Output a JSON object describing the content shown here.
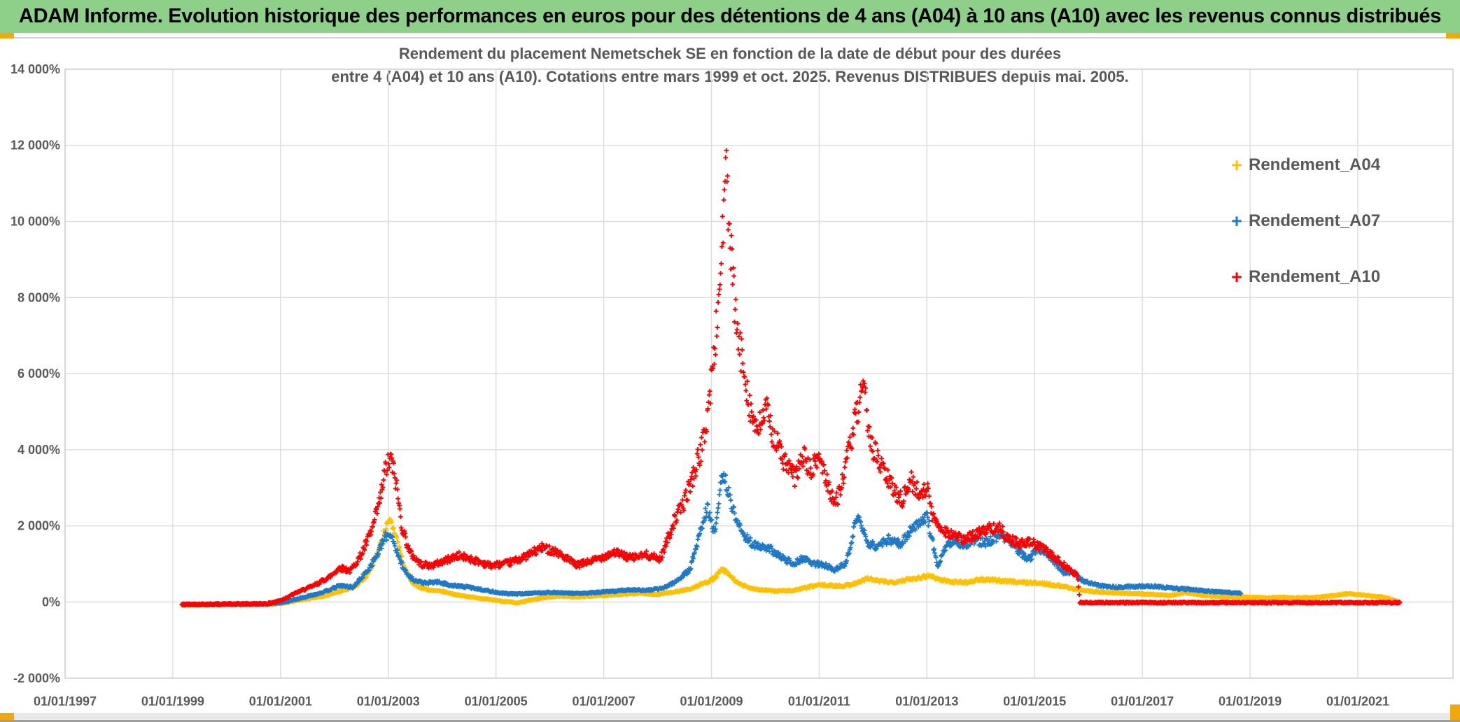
{
  "header": {
    "title": "ADAM Informe. Evolution historique des performances en euros pour des détentions de 4 ans (A04) à 10 ans (A10) avec les revenus connus distribués",
    "bg_color": "#8ECF8A",
    "accent_color": "#F0A80C"
  },
  "chart_data": {
    "type": "scatter",
    "marker": "plus",
    "title_lines": [
      "Rendement du placement Nemetschek SE en fonction de la date de début pour des durées",
      "entre 4 (A04) et 10 ans (A10). Cotations entre mars 1999 et oct. 2025. Revenus DISTRIBUES depuis mai. 2005."
    ],
    "grid": true,
    "grid_color": "#dcdcdc",
    "border_color": "#cfcfcf",
    "axis_text_color": "#595959",
    "x_axis": {
      "tick_years": [
        1997,
        1999,
        2001,
        2003,
        2005,
        2007,
        2009,
        2011,
        2013,
        2015,
        2017,
        2019,
        2021
      ],
      "tick_labels": [
        "01/01/1997",
        "01/01/1999",
        "01/01/2001",
        "01/01/2003",
        "01/01/2005",
        "01/01/2007",
        "01/01/2009",
        "01/01/2011",
        "01/01/2013",
        "01/01/2015",
        "01/01/2017",
        "01/01/2019",
        "01/01/2021"
      ]
    },
    "y_axis": {
      "min": -2000,
      "max": 14000,
      "tick_values": [
        14000,
        12000,
        10000,
        8000,
        6000,
        4000,
        2000,
        0,
        -2000
      ],
      "tick_labels": [
        "14 000%",
        "12 000%",
        "10 000%",
        "8 000%",
        "6 000%",
        "4 000%",
        "2 000%",
        "0%",
        "-2 000%"
      ]
    },
    "legend": {
      "position": "right",
      "entries": [
        {
          "label": "Rendement_A04",
          "color": "#FFC000"
        },
        {
          "label": "Rendement_A07",
          "color": "#1E7AC8"
        },
        {
          "label": "Rendement_A10",
          "color": "#FE0000"
        }
      ]
    },
    "series": [
      {
        "name": "Rendement_A04",
        "color": "#FFC000",
        "seed": 7,
        "points_per_year": 85,
        "noise_frac": 0.07,
        "noise_min": 14,
        "keypoints": [
          [
            1999.17,
            -80
          ],
          [
            1999.6,
            -75
          ],
          [
            2000.2,
            -70
          ],
          [
            2000.75,
            -60
          ],
          [
            2001.0,
            -40
          ],
          [
            2001.4,
            60
          ],
          [
            2001.8,
            150
          ],
          [
            2002.1,
            280
          ],
          [
            2002.4,
            420
          ],
          [
            2002.6,
            700
          ],
          [
            2002.8,
            1250
          ],
          [
            2002.95,
            1950
          ],
          [
            2003.05,
            2100
          ],
          [
            2003.15,
            1700
          ],
          [
            2003.3,
            900
          ],
          [
            2003.45,
            500
          ],
          [
            2003.6,
            380
          ],
          [
            2003.8,
            300
          ],
          [
            2004.0,
            280
          ],
          [
            2004.3,
            180
          ],
          [
            2004.6,
            120
          ],
          [
            2004.9,
            60
          ],
          [
            2005.2,
            10
          ],
          [
            2005.4,
            -30
          ],
          [
            2005.6,
            40
          ],
          [
            2005.9,
            120
          ],
          [
            2006.2,
            160
          ],
          [
            2006.5,
            130
          ],
          [
            2006.8,
            160
          ],
          [
            2007.1,
            180
          ],
          [
            2007.4,
            210
          ],
          [
            2007.7,
            230
          ],
          [
            2008.0,
            200
          ],
          [
            2008.3,
            260
          ],
          [
            2008.6,
            340
          ],
          [
            2008.9,
            520
          ],
          [
            2009.05,
            620
          ],
          [
            2009.2,
            860
          ],
          [
            2009.35,
            690
          ],
          [
            2009.5,
            480
          ],
          [
            2009.7,
            380
          ],
          [
            2009.9,
            320
          ],
          [
            2010.2,
            290
          ],
          [
            2010.5,
            300
          ],
          [
            2010.8,
            390
          ],
          [
            2011.0,
            450
          ],
          [
            2011.2,
            430
          ],
          [
            2011.45,
            420
          ],
          [
            2011.7,
            500
          ],
          [
            2011.9,
            620
          ],
          [
            2012.1,
            550
          ],
          [
            2012.35,
            520
          ],
          [
            2012.6,
            580
          ],
          [
            2012.85,
            640
          ],
          [
            2013.05,
            700
          ],
          [
            2013.25,
            580
          ],
          [
            2013.5,
            530
          ],
          [
            2013.75,
            520
          ],
          [
            2014.0,
            590
          ],
          [
            2014.25,
            570
          ],
          [
            2014.5,
            550
          ],
          [
            2014.75,
            520
          ],
          [
            2015.0,
            500
          ],
          [
            2015.25,
            470
          ],
          [
            2015.5,
            420
          ],
          [
            2015.75,
            340
          ],
          [
            2016.0,
            290
          ],
          [
            2016.3,
            250
          ],
          [
            2016.6,
            230
          ],
          [
            2016.9,
            220
          ],
          [
            2017.2,
            200
          ],
          [
            2017.5,
            170
          ],
          [
            2017.8,
            250
          ],
          [
            2018.1,
            180
          ],
          [
            2018.4,
            150
          ],
          [
            2018.7,
            130
          ],
          [
            2019.0,
            120
          ],
          [
            2019.3,
            110
          ],
          [
            2019.6,
            120
          ],
          [
            2019.9,
            110
          ],
          [
            2020.2,
            120
          ],
          [
            2020.5,
            160
          ],
          [
            2020.8,
            220
          ],
          [
            2021.0,
            200
          ],
          [
            2021.2,
            170
          ],
          [
            2021.45,
            130
          ],
          [
            2021.6,
            80
          ],
          [
            2021.79,
            0
          ]
        ]
      },
      {
        "name": "Rendement_A07",
        "color": "#1E7AC8",
        "seed": 13,
        "points_per_year": 85,
        "noise_frac": 0.07,
        "noise_min": 16,
        "keypoints": [
          [
            1999.17,
            -70
          ],
          [
            1999.6,
            -65
          ],
          [
            2000.2,
            -60
          ],
          [
            2000.75,
            -50
          ],
          [
            2001.05,
            -10
          ],
          [
            2001.4,
            110
          ],
          [
            2001.8,
            260
          ],
          [
            2002.1,
            430
          ],
          [
            2002.35,
            390
          ],
          [
            2002.6,
            800
          ],
          [
            2002.8,
            1250
          ],
          [
            2002.95,
            1720
          ],
          [
            2003.05,
            1800
          ],
          [
            2003.2,
            1150
          ],
          [
            2003.35,
            720
          ],
          [
            2003.5,
            560
          ],
          [
            2003.7,
            490
          ],
          [
            2003.9,
            530
          ],
          [
            2004.2,
            430
          ],
          [
            2004.5,
            390
          ],
          [
            2004.8,
            310
          ],
          [
            2005.1,
            230
          ],
          [
            2005.4,
            210
          ],
          [
            2005.7,
            235
          ],
          [
            2006.0,
            255
          ],
          [
            2006.3,
            235
          ],
          [
            2006.6,
            225
          ],
          [
            2006.9,
            255
          ],
          [
            2007.2,
            285
          ],
          [
            2007.5,
            325
          ],
          [
            2007.8,
            305
          ],
          [
            2008.1,
            360
          ],
          [
            2008.35,
            550
          ],
          [
            2008.6,
            850
          ],
          [
            2008.92,
            2500
          ],
          [
            2009.05,
            1800
          ],
          [
            2009.18,
            3100
          ],
          [
            2009.25,
            3300
          ],
          [
            2009.35,
            2650
          ],
          [
            2009.55,
            1850
          ],
          [
            2009.8,
            1480
          ],
          [
            2010.1,
            1380
          ],
          [
            2010.35,
            1120
          ],
          [
            2010.55,
            1020
          ],
          [
            2010.7,
            1160
          ],
          [
            2010.9,
            1010
          ],
          [
            2011.1,
            960
          ],
          [
            2011.3,
            860
          ],
          [
            2011.5,
            1010
          ],
          [
            2011.65,
            1950
          ],
          [
            2011.75,
            2200
          ],
          [
            2011.9,
            1520
          ],
          [
            2012.1,
            1460
          ],
          [
            2012.3,
            1660
          ],
          [
            2012.5,
            1520
          ],
          [
            2012.7,
            1900
          ],
          [
            2012.85,
            2080
          ],
          [
            2013.0,
            2280
          ],
          [
            2013.1,
            1620
          ],
          [
            2013.2,
            960
          ],
          [
            2013.35,
            1420
          ],
          [
            2013.5,
            1620
          ],
          [
            2013.7,
            1500
          ],
          [
            2013.9,
            1610
          ],
          [
            2014.1,
            1560
          ],
          [
            2014.35,
            1740
          ],
          [
            2014.55,
            1610
          ],
          [
            2014.75,
            1260
          ],
          [
            2014.9,
            1120
          ],
          [
            2015.05,
            1400
          ],
          [
            2015.2,
            1340
          ],
          [
            2015.4,
            1000
          ],
          [
            2015.55,
            760
          ],
          [
            2015.7,
            800
          ],
          [
            2015.85,
            600
          ],
          [
            2016.0,
            500
          ],
          [
            2016.2,
            430
          ],
          [
            2016.5,
            390
          ],
          [
            2016.8,
            405
          ],
          [
            2017.1,
            425
          ],
          [
            2017.4,
            385
          ],
          [
            2017.7,
            350
          ],
          [
            2018.0,
            325
          ],
          [
            2018.3,
            275
          ],
          [
            2018.6,
            250
          ],
          [
            2018.83,
            235
          ]
        ]
      },
      {
        "name": "Rendement_A10",
        "color": "#FE0000",
        "seed": 42,
        "points_per_year": 85,
        "noise_frac": 0.08,
        "noise_min": 18,
        "keypoints": [
          [
            1999.17,
            -60
          ],
          [
            1999.6,
            -55
          ],
          [
            2000.2,
            -50
          ],
          [
            2000.75,
            -45
          ],
          [
            2001.0,
            40
          ],
          [
            2001.3,
            250
          ],
          [
            2001.6,
            420
          ],
          [
            2001.9,
            650
          ],
          [
            2002.1,
            900
          ],
          [
            2002.3,
            820
          ],
          [
            2002.5,
            1250
          ],
          [
            2002.7,
            1900
          ],
          [
            2002.85,
            2700
          ],
          [
            2002.95,
            3500
          ],
          [
            2003.05,
            3750
          ],
          [
            2003.15,
            3100
          ],
          [
            2003.25,
            2000
          ],
          [
            2003.4,
            1300
          ],
          [
            2003.6,
            1000
          ],
          [
            2003.8,
            950
          ],
          [
            2004.0,
            1060
          ],
          [
            2004.3,
            1220
          ],
          [
            2004.6,
            1100
          ],
          [
            2004.9,
            960
          ],
          [
            2005.2,
            1010
          ],
          [
            2005.5,
            1160
          ],
          [
            2005.85,
            1430
          ],
          [
            2006.1,
            1340
          ],
          [
            2006.5,
            960
          ],
          [
            2006.8,
            1090
          ],
          [
            2007.2,
            1310
          ],
          [
            2007.5,
            1160
          ],
          [
            2007.8,
            1240
          ],
          [
            2008.05,
            1120
          ],
          [
            2008.3,
            2100
          ],
          [
            2008.5,
            2650
          ],
          [
            2008.7,
            3500
          ],
          [
            2008.85,
            4200
          ],
          [
            2008.95,
            5200
          ],
          [
            2009.05,
            6500
          ],
          [
            2009.15,
            8200
          ],
          [
            2009.22,
            10200
          ],
          [
            2009.28,
            11300
          ],
          [
            2009.33,
            9800
          ],
          [
            2009.4,
            8300
          ],
          [
            2009.5,
            6800
          ],
          [
            2009.6,
            6200
          ],
          [
            2009.72,
            5100
          ],
          [
            2009.85,
            4400
          ],
          [
            2010.0,
            5100
          ],
          [
            2010.15,
            4400
          ],
          [
            2010.35,
            3700
          ],
          [
            2010.55,
            3250
          ],
          [
            2010.7,
            3850
          ],
          [
            2010.85,
            3400
          ],
          [
            2011.0,
            3850
          ],
          [
            2011.15,
            3150
          ],
          [
            2011.3,
            2550
          ],
          [
            2011.45,
            3300
          ],
          [
            2011.6,
            4300
          ],
          [
            2011.75,
            5250
          ],
          [
            2011.85,
            5450
          ],
          [
            2011.95,
            4250
          ],
          [
            2012.1,
            3700
          ],
          [
            2012.25,
            3300
          ],
          [
            2012.4,
            2900
          ],
          [
            2012.55,
            2700
          ],
          [
            2012.7,
            3200
          ],
          [
            2012.85,
            2850
          ],
          [
            2013.0,
            3050
          ],
          [
            2013.1,
            2250
          ],
          [
            2013.3,
            1900
          ],
          [
            2013.5,
            1750
          ],
          [
            2013.7,
            1620
          ],
          [
            2013.9,
            1780
          ],
          [
            2014.1,
            1900
          ],
          [
            2014.3,
            2000
          ],
          [
            2014.5,
            1700
          ],
          [
            2014.7,
            1520
          ],
          [
            2014.9,
            1560
          ],
          [
            2015.1,
            1480
          ],
          [
            2015.3,
            1240
          ],
          [
            2015.5,
            1020
          ],
          [
            2015.65,
            840
          ],
          [
            2015.8,
            700
          ],
          [
            2015.84,
            -15
          ],
          [
            2021.79,
            -15
          ]
        ]
      }
    ]
  }
}
